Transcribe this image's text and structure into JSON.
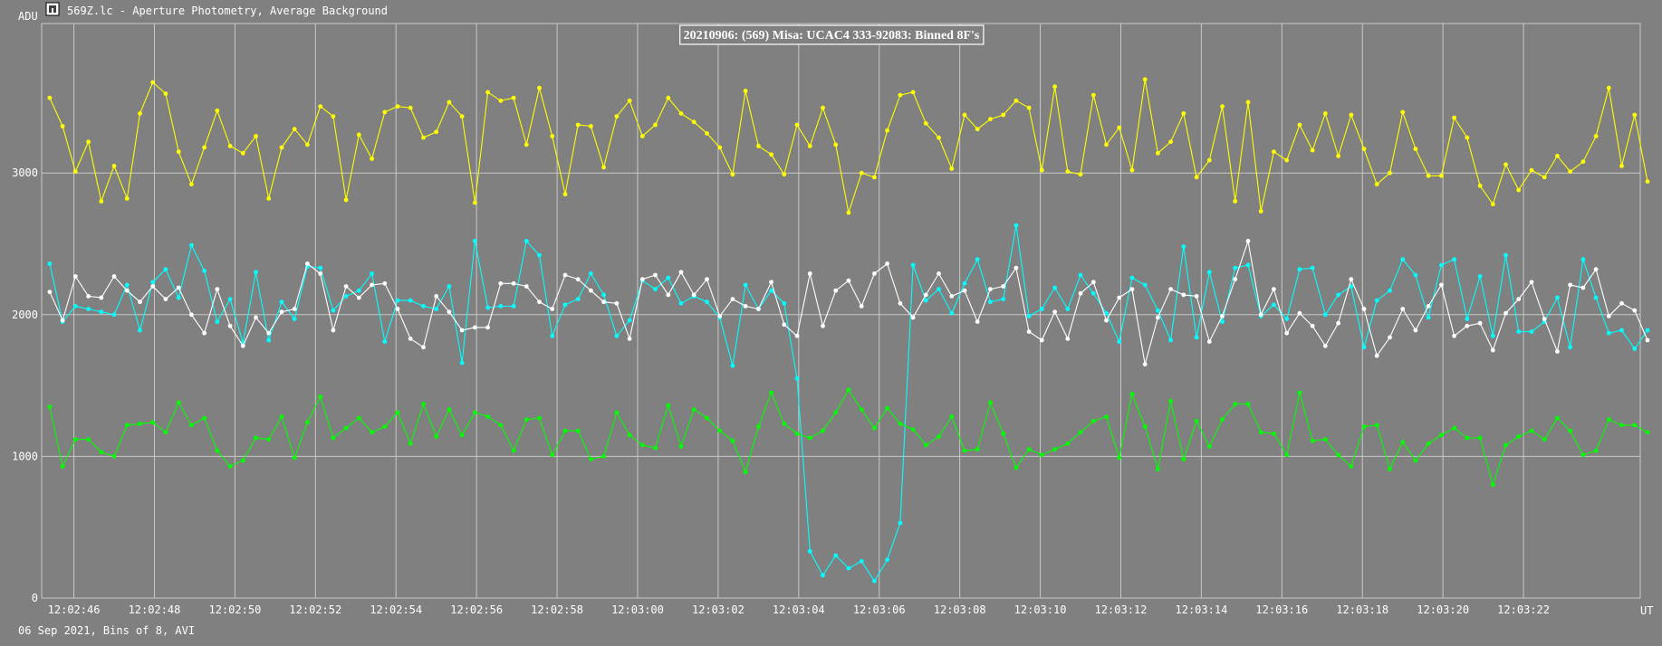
{
  "window": {
    "title": "569Z.lc - Aperture Photometry, Average Background",
    "icon": "photometry-app-icon"
  },
  "footer": {
    "caption": "06 Sep 2021, Bins of 8, AVI"
  },
  "chart_data": {
    "type": "line",
    "title": "20210906: (569) Misa: UCAC4 333-92083: Binned 8F's",
    "ylabel": "ADU",
    "xlabel": "UT",
    "ylim": [
      0,
      4100
    ],
    "yticks": [
      0,
      1000,
      2000,
      3000
    ],
    "ytick_labels": [
      "0",
      "1000",
      "2000",
      "3000"
    ],
    "x_range": [
      "12:02:45.2",
      "12:03:24.9"
    ],
    "x_ticks": [
      "12:02:46",
      "12:02:48",
      "12:02:50",
      "12:02:52",
      "12:02:54",
      "12:02:56",
      "12:02:58",
      "12:03:00",
      "12:03:02",
      "12:03:04",
      "12:03:06",
      "12:03:08",
      "12:03:10",
      "12:03:12",
      "12:03:14",
      "12:03:16",
      "12:03:18",
      "12:03:20",
      "12:03:22"
    ],
    "x_start": "12:02:45.4",
    "x_step_seconds": 0.32,
    "grid": true,
    "series": [
      {
        "color": "#ffff00",
        "values": [
          3530,
          3330,
          3010,
          3220,
          2800,
          3050,
          2820,
          3420,
          3640,
          3560,
          3150,
          2920,
          3180,
          3440,
          3190,
          3140,
          3260,
          2820,
          3180,
          3310,
          3200,
          3470,
          3400,
          2810,
          3270,
          3100,
          3430,
          3470,
          3460,
          3250,
          3290,
          3500,
          3400,
          2790,
          3570,
          3510,
          3530,
          3200,
          3600,
          3260,
          2850,
          3340,
          3330,
          3040,
          3400,
          3510,
          3260,
          3340,
          3530,
          3420,
          3360,
          3280,
          3180,
          2990,
          3580,
          3190,
          3130,
          2990,
          3340,
          3190,
          3460,
          3200,
          2720,
          3000,
          2970,
          3300,
          3550,
          3570,
          3350,
          3250,
          3030,
          3410,
          3310,
          3380,
          3410,
          3510,
          3460,
          3020,
          3610,
          3010,
          2990,
          3550,
          3200,
          3320,
          3020,
          3660,
          3140,
          3220,
          3420,
          2970,
          3090,
          3470,
          2800,
          3500,
          2730,
          3150,
          3090,
          3340,
          3160,
          3420,
          3120,
          3410,
          3170,
          2920,
          3000,
          3430,
          3170,
          2980,
          2980,
          3390,
          3250,
          2910,
          2780,
          3060,
          2880,
          3020,
          2970,
          3120,
          3010,
          3080,
          3260,
          3600,
          3050,
          3410,
          2940
        ]
      },
      {
        "color": "#00ffff",
        "values": [
          2360,
          1950,
          2060,
          2040,
          2020,
          2000,
          2210,
          1890,
          2230,
          2320,
          2120,
          2490,
          2310,
          1950,
          2110,
          1800,
          2300,
          1820,
          2090,
          1970,
          2340,
          2330,
          2030,
          2130,
          2170,
          2290,
          1810,
          2100,
          2100,
          2060,
          2040,
          2200,
          1660,
          2520,
          2050,
          2060,
          2060,
          2520,
          2420,
          1850,
          2070,
          2110,
          2290,
          2140,
          1850,
          1960,
          2240,
          2180,
          2260,
          2080,
          2130,
          2090,
          1980,
          1640,
          2210,
          2040,
          2170,
          2080,
          1550,
          330,
          160,
          300,
          210,
          260,
          120,
          270,
          530,
          2350,
          2100,
          2180,
          2010,
          2220,
          2390,
          2090,
          2110,
          2630,
          1990,
          2040,
          2190,
          2040,
          2280,
          2150,
          2010,
          1810,
          2260,
          2210,
          2030,
          1820,
          2480,
          1840,
          2300,
          1950,
          2330,
          2350,
          1990,
          2070,
          1970,
          2320,
          2330,
          2000,
          2140,
          2200,
          1770,
          2100,
          2170,
          2390,
          2280,
          1980,
          2350,
          2390,
          1970,
          2270,
          1850,
          2420,
          1880,
          1880,
          1950,
          2120,
          1770,
          2390,
          2120,
          1870,
          1890,
          1760,
          1890
        ]
      },
      {
        "color": "#ffffff",
        "values": [
          2160,
          1960,
          2270,
          2130,
          2120,
          2270,
          2170,
          2090,
          2200,
          2110,
          2190,
          2000,
          1870,
          2180,
          1920,
          1780,
          1980,
          1870,
          2020,
          2040,
          2360,
          2290,
          1890,
          2200,
          2120,
          2210,
          2220,
          2040,
          1830,
          1770,
          2130,
          2020,
          1890,
          1910,
          1910,
          2220,
          2220,
          2200,
          2090,
          2040,
          2280,
          2250,
          2170,
          2090,
          2080,
          1830,
          2250,
          2280,
          2140,
          2300,
          2140,
          2250,
          1990,
          2110,
          2060,
          2040,
          2230,
          1930,
          1850,
          2290,
          1920,
          2170,
          2240,
          2060,
          2290,
          2360,
          2080,
          1980,
          2140,
          2290,
          2130,
          2170,
          1950,
          2180,
          2200,
          2330,
          1880,
          1820,
          2020,
          1830,
          2150,
          2230,
          1960,
          2120,
          2180,
          1650,
          1980,
          2180,
          2140,
          2130,
          1810,
          1990,
          2250,
          2520,
          2000,
          2180,
          1870,
          2010,
          1920,
          1780,
          1940,
          2250,
          2040,
          1710,
          1840,
          2040,
          1890,
          2060,
          2210,
          1850,
          1920,
          1940,
          1750,
          2010,
          2110,
          2230,
          1970,
          1740,
          2210,
          2190,
          2320,
          1990,
          2080,
          2030,
          1820
        ]
      },
      {
        "color": "#00ff00",
        "values": [
          1350,
          930,
          1120,
          1120,
          1030,
          1000,
          1220,
          1230,
          1240,
          1170,
          1380,
          1220,
          1270,
          1040,
          930,
          970,
          1130,
          1120,
          1280,
          990,
          1240,
          1420,
          1130,
          1200,
          1270,
          1170,
          1210,
          1310,
          1090,
          1370,
          1140,
          1330,
          1150,
          1310,
          1280,
          1220,
          1040,
          1260,
          1270,
          1010,
          1180,
          1180,
          980,
          1000,
          1310,
          1150,
          1080,
          1060,
          1360,
          1070,
          1330,
          1270,
          1180,
          1110,
          890,
          1210,
          1450,
          1230,
          1160,
          1130,
          1180,
          1310,
          1470,
          1330,
          1200,
          1340,
          1230,
          1190,
          1080,
          1140,
          1280,
          1040,
          1050,
          1380,
          1160,
          920,
          1050,
          1010,
          1050,
          1090,
          1170,
          1250,
          1280,
          990,
          1440,
          1210,
          910,
          1390,
          980,
          1250,
          1070,
          1260,
          1370,
          1370,
          1170,
          1160,
          1010,
          1450,
          1110,
          1120,
          1010,
          930,
          1210,
          1220,
          910,
          1100,
          970,
          1090,
          1150,
          1200,
          1130,
          1130,
          800,
          1080,
          1140,
          1180,
          1120,
          1270,
          1180,
          1010,
          1040,
          1260,
          1220,
          1220,
          1170
        ]
      }
    ]
  }
}
